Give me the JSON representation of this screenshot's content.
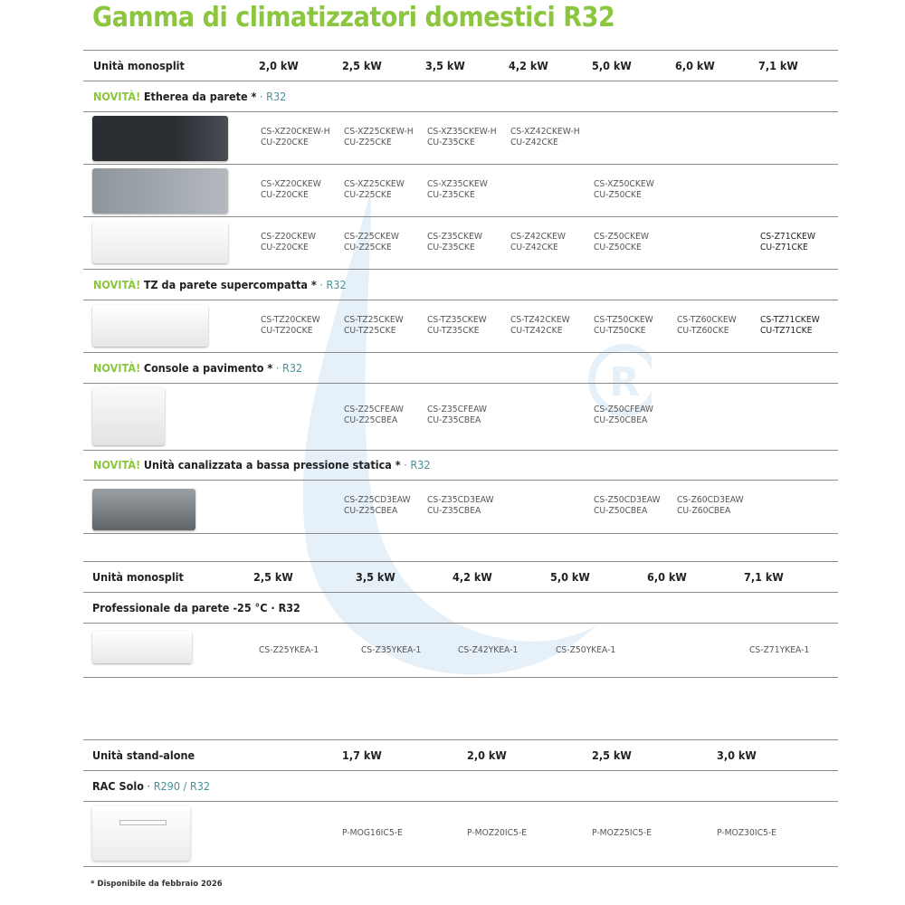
{
  "title": "Gamma di climatizzatori domestici R32",
  "colors": {
    "accent_green": "#8cc63f",
    "refrigerant_teal": "#4a8f9a",
    "drop_blue": "#bcd9ee"
  },
  "table1": {
    "header": {
      "label": "Unità monosplit",
      "sizes": [
        "2,0 kW",
        "2,5 kW",
        "3,5 kW",
        "4,2 kW",
        "5,0 kW",
        "6,0 kW",
        "7,1 kW"
      ]
    },
    "sections": [
      {
        "novita": "NOVITÀ!",
        "name": "Etherea da parete *",
        "ref": "· R32",
        "image": "unit-dark-wall",
        "rows": [
          {
            "image": "etherea-dark",
            "cells": [
              [
                "CS-XZ20CKEW-H",
                "CU-Z20CKE"
              ],
              [
                "CS-XZ25CKEW-H",
                "CU-Z25CKE"
              ],
              [
                "CS-XZ35CKEW-H",
                "CU-Z35CKE"
              ],
              [
                "CS-XZ42CKEW-H",
                "CU-Z42CKE"
              ],
              null,
              null,
              null
            ]
          },
          {
            "image": "etherea-silver",
            "cells": [
              [
                "CS-XZ20CKEW",
                "CU-Z20CKE"
              ],
              [
                "CS-XZ25CKEW",
                "CU-Z25CKE"
              ],
              [
                "CS-XZ35CKEW",
                "CU-Z35CKE"
              ],
              null,
              [
                "CS-XZ50CKEW",
                "CU-Z50CKE"
              ],
              null,
              null
            ]
          },
          {
            "image": "etherea-white",
            "cells": [
              [
                "CS-Z20CKEW",
                "CU-Z20CKE"
              ],
              [
                "CS-Z25CKEW",
                "CU-Z25CKE"
              ],
              [
                "CS-Z35CKEW",
                "CU-Z35CKE"
              ],
              [
                "CS-Z42CKEW",
                "CU-Z42CKE"
              ],
              [
                "CS-Z50CKEW",
                "CU-Z50CKE"
              ],
              null,
              [
                "CS-Z71CKEW",
                "CU-Z71CKE"
              ]
            ]
          }
        ]
      },
      {
        "novita": "NOVITÀ!",
        "name": "TZ da parete supercompatta *",
        "ref": "· R32",
        "rows": [
          {
            "image": "tz-white",
            "cells": [
              [
                "CS-TZ20CKEW",
                "CU-TZ20CKE"
              ],
              [
                "CS-TZ25CKEW",
                "CU-TZ25CKE"
              ],
              [
                "CS-TZ35CKEW",
                "CU-TZ35CKE"
              ],
              [
                "CS-TZ42CKEW",
                "CU-TZ42CKE"
              ],
              [
                "CS-TZ50CKEW",
                "CU-TZ50CKE"
              ],
              [
                "CS-TZ60CKEW",
                "CU-TZ60CKE"
              ],
              [
                "CS-TZ71CKEW",
                "CU-TZ71CKE"
              ]
            ]
          }
        ]
      },
      {
        "novita": "NOVITÀ!",
        "name": "Console a pavimento *",
        "ref": "· R32",
        "rows": [
          {
            "image": "console",
            "cells": [
              null,
              [
                "CS-Z25CFEAW",
                "CU-Z25CBEA"
              ],
              [
                "CS-Z35CFEAW",
                "CU-Z35CBEA"
              ],
              null,
              [
                "CS-Z50CFEAW",
                "CU-Z50CBEA"
              ],
              null,
              null
            ]
          }
        ]
      },
      {
        "novita": "NOVITÀ!",
        "name": "Unità canalizzata a bassa pressione statica *",
        "ref": "· R32",
        "rows": [
          {
            "image": "ducted",
            "cells": [
              null,
              [
                "CS-Z25CD3EAW",
                "CU-Z25CBEA"
              ],
              [
                "CS-Z35CD3EAW",
                "CU-Z35CBEA"
              ],
              null,
              [
                "CS-Z50CD3EAW",
                "CU-Z50CBEA"
              ],
              [
                "CS-Z60CD3EAW",
                "CU-Z60CBEA"
              ],
              null
            ]
          }
        ]
      }
    ]
  },
  "table2": {
    "header": {
      "label": "Unità monosplit",
      "sizes": [
        "2,5 kW",
        "3,5 kW",
        "4,2 kW",
        "5,0 kW",
        "6,0 kW",
        "7,1 kW"
      ]
    },
    "section": "Professionale da parete -25 °C · R32",
    "codes": [
      "CS-Z25YKEA-1",
      "CS-Z35YKEA-1",
      "CS-Z42YKEA-1",
      "CS-Z50YKEA-1",
      "",
      "CS-Z71YKEA-1"
    ]
  },
  "table3": {
    "header": {
      "label": "Unità stand-alone",
      "sizes": [
        "1,7 kW",
        "2,0 kW",
        "2,5 kW",
        "3,0 kW"
      ]
    },
    "section": {
      "name": "RAC Solo",
      "sep": " · ",
      "ref": "R290 / R32"
    },
    "codes": [
      "P-MOG16IC5-E",
      "P-MOZ20IC5-E",
      "P-MOZ25IC5-E",
      "P-MOZ30IC5-E"
    ]
  },
  "footnote": "* Disponibile da febbraio 2026"
}
